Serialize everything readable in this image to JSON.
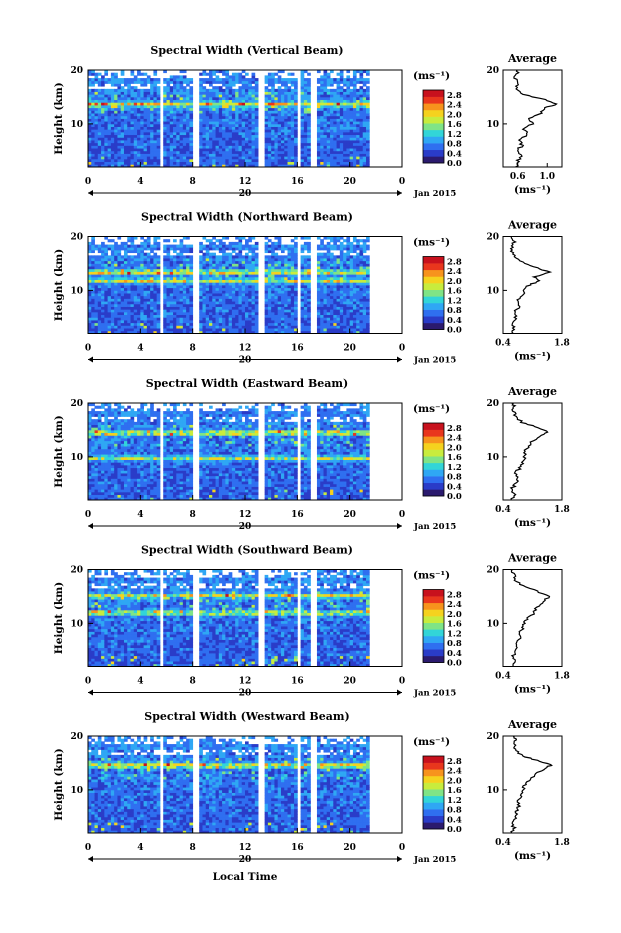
{
  "figure": {
    "date_label": "Jan 2015",
    "day_label": "20",
    "xlabel": "Local Time",
    "ylabel": "Height (km)",
    "unit_label": "(ms⁻¹)",
    "avg_title": "Average",
    "colorbar_ticks": [
      "2.8",
      "2.4",
      "2.0",
      "1.6",
      "1.2",
      "0.8",
      "0.4",
      "0.0"
    ],
    "colormap": [
      "#2b1a6e",
      "#2a3cc8",
      "#2f6ff0",
      "#2fa7f4",
      "#32d5d8",
      "#7fe486",
      "#c8ec3d",
      "#f5d21e",
      "#f7931d",
      "#e9361d",
      "#c8111d"
    ]
  },
  "chart_data": [
    {
      "type": "heatmap",
      "title": "Spectral Width (Vertical Beam)",
      "xlabel": "Local Time",
      "ylabel": "Height (km)",
      "xlim": [
        0,
        24
      ],
      "ylim": [
        2,
        20
      ],
      "xticks": [
        "0",
        "4",
        "8",
        "12",
        "16",
        "20",
        "0"
      ],
      "yticks": [
        "10",
        "20"
      ],
      "colorbar_range": [
        0,
        3.0
      ],
      "gaps": [
        [
          5.5,
          5.8
        ],
        [
          8.1,
          8.4
        ],
        [
          13.1,
          13.4
        ],
        [
          16.0,
          16.3
        ],
        [
          17.1,
          17.4
        ],
        [
          21.6,
          24
        ]
      ],
      "hot_layers": [
        {
          "height": 13.7,
          "value": 2.6
        }
      ],
      "avg": {
        "xlim": [
          0.4,
          1.2
        ],
        "xticks": [
          "0.6",
          "1.0"
        ],
        "xlabel": "(ms⁻¹)",
        "profile": [
          [
            2,
            0.58
          ],
          [
            3,
            0.6
          ],
          [
            4,
            0.64
          ],
          [
            5,
            0.58
          ],
          [
            6,
            0.66
          ],
          [
            7,
            0.62
          ],
          [
            8,
            0.74
          ],
          [
            9,
            0.68
          ],
          [
            10,
            0.8
          ],
          [
            11,
            0.76
          ],
          [
            12,
            0.92
          ],
          [
            13,
            0.98
          ],
          [
            13.7,
            1.12
          ],
          [
            14.5,
            0.96
          ],
          [
            15.5,
            0.68
          ],
          [
            16.5,
            0.58
          ],
          [
            17.5,
            0.6
          ],
          [
            18.5,
            0.56
          ],
          [
            19.5,
            0.6
          ],
          [
            20,
            0.58
          ]
        ]
      }
    },
    {
      "type": "heatmap",
      "title": "Spectral Width (Northward Beam)",
      "xlabel": "Local Time",
      "ylabel": "Height (km)",
      "xlim": [
        0,
        24
      ],
      "ylim": [
        2,
        20
      ],
      "xticks": [
        "0",
        "4",
        "8",
        "12",
        "16",
        "20",
        "0"
      ],
      "yticks": [
        "10",
        "20"
      ],
      "colorbar_range": [
        0,
        3.0
      ],
      "gaps": [
        [
          5.5,
          5.8
        ],
        [
          8.1,
          8.4
        ],
        [
          13.1,
          13.4
        ],
        [
          16.0,
          16.3
        ],
        [
          17.1,
          17.4
        ],
        [
          21.6,
          24
        ]
      ],
      "hot_layers": [
        {
          "height": 13.4,
          "value": 2.5
        },
        {
          "height": 11.8,
          "value": 2.3
        }
      ],
      "avg": {
        "xlim": [
          0.4,
          1.8
        ],
        "xticks": [
          "0.4",
          "1.8"
        ],
        "xlabel": "(ms⁻¹)",
        "profile": [
          [
            2,
            0.6
          ],
          [
            3,
            0.66
          ],
          [
            4,
            0.62
          ],
          [
            5,
            0.7
          ],
          [
            6,
            0.68
          ],
          [
            7,
            0.78
          ],
          [
            8,
            0.74
          ],
          [
            9,
            0.88
          ],
          [
            10,
            0.9
          ],
          [
            11,
            1.02
          ],
          [
            11.8,
            1.28
          ],
          [
            12.5,
            1.12
          ],
          [
            13.4,
            1.52
          ],
          [
            14.2,
            1.2
          ],
          [
            15,
            0.9
          ],
          [
            16,
            0.72
          ],
          [
            17,
            0.62
          ],
          [
            18,
            0.6
          ],
          [
            19,
            0.66
          ],
          [
            20,
            0.6
          ]
        ]
      }
    },
    {
      "type": "heatmap",
      "title": "Spectral Width (Eastward Beam)",
      "xlabel": "Local Time",
      "ylabel": "Height (km)",
      "xlim": [
        0,
        24
      ],
      "ylim": [
        2,
        20
      ],
      "xticks": [
        "0",
        "4",
        "8",
        "12",
        "16",
        "20",
        "0"
      ],
      "yticks": [
        "10",
        "20"
      ],
      "colorbar_range": [
        0,
        3.0
      ],
      "gaps": [
        [
          5.5,
          5.8
        ],
        [
          8.1,
          8.4
        ],
        [
          13.1,
          13.4
        ],
        [
          16.0,
          16.3
        ],
        [
          17.1,
          17.4
        ],
        [
          21.6,
          24
        ]
      ],
      "hot_layers": [
        {
          "height": 14.5,
          "value": 2.5
        },
        {
          "height": 9.8,
          "value": 2.2
        }
      ],
      "avg": {
        "xlim": [
          0.4,
          1.8
        ],
        "xticks": [
          "0.4",
          "1.8"
        ],
        "xlabel": "(ms⁻¹)",
        "profile": [
          [
            2,
            0.62
          ],
          [
            3,
            0.66
          ],
          [
            4,
            0.6
          ],
          [
            5,
            0.7
          ],
          [
            6,
            0.74
          ],
          [
            7,
            0.7
          ],
          [
            8,
            0.8
          ],
          [
            9,
            0.86
          ],
          [
            10,
            0.92
          ],
          [
            11,
            0.9
          ],
          [
            12,
            1.0
          ],
          [
            13,
            1.1
          ],
          [
            14,
            1.3
          ],
          [
            14.8,
            1.46
          ],
          [
            15.6,
            1.18
          ],
          [
            16.4,
            0.86
          ],
          [
            17.5,
            0.7
          ],
          [
            18.5,
            0.64
          ],
          [
            19.5,
            0.68
          ],
          [
            20,
            0.6
          ]
        ]
      }
    },
    {
      "type": "heatmap",
      "title": "Spectral Width (Southward Beam)",
      "xlabel": "Local Time",
      "ylabel": "Height (km)",
      "xlim": [
        0,
        24
      ],
      "ylim": [
        2,
        20
      ],
      "xticks": [
        "0",
        "4",
        "8",
        "12",
        "16",
        "20",
        "0"
      ],
      "yticks": [
        "10",
        "20"
      ],
      "colorbar_range": [
        0,
        3.0
      ],
      "gaps": [
        [
          5.5,
          5.8
        ],
        [
          8.1,
          8.4
        ],
        [
          13.1,
          13.4
        ],
        [
          16.0,
          16.3
        ],
        [
          17.1,
          17.4
        ],
        [
          21.6,
          24
        ]
      ],
      "hot_layers": [
        {
          "height": 15.2,
          "value": 2.3
        },
        {
          "height": 12.0,
          "value": 2.4
        }
      ],
      "avg": {
        "xlim": [
          0.4,
          1.8
        ],
        "xticks": [
          "0.4",
          "1.8"
        ],
        "xlabel": "(ms⁻¹)",
        "profile": [
          [
            2,
            0.6
          ],
          [
            3,
            0.68
          ],
          [
            4,
            0.64
          ],
          [
            5,
            0.72
          ],
          [
            6,
            0.7
          ],
          [
            7,
            0.8
          ],
          [
            8,
            0.76
          ],
          [
            9,
            0.86
          ],
          [
            10,
            0.9
          ],
          [
            11,
            1.0
          ],
          [
            12,
            1.14
          ],
          [
            13,
            1.2
          ],
          [
            14,
            1.36
          ],
          [
            15,
            1.5
          ],
          [
            16,
            1.2
          ],
          [
            17,
            0.88
          ],
          [
            18,
            0.7
          ],
          [
            19,
            0.66
          ],
          [
            20,
            0.62
          ]
        ]
      }
    },
    {
      "type": "heatmap",
      "title": "Spectral Width (Westward Beam)",
      "xlabel": "Local Time",
      "ylabel": "Height (km)",
      "xlim": [
        0,
        24
      ],
      "ylim": [
        2,
        20
      ],
      "xticks": [
        "0",
        "4",
        "8",
        "12",
        "16",
        "20",
        "0"
      ],
      "yticks": [
        "10",
        "20"
      ],
      "colorbar_range": [
        0,
        3.0
      ],
      "gaps": [
        [
          5.5,
          5.8
        ],
        [
          8.1,
          8.4
        ],
        [
          13.1,
          13.4
        ],
        [
          16.0,
          16.3
        ],
        [
          17.1,
          17.4
        ],
        [
          21.6,
          24
        ]
      ],
      "hot_layers": [
        {
          "height": 14.6,
          "value": 2.6
        }
      ],
      "avg": {
        "xlim": [
          0.4,
          1.8
        ],
        "xticks": [
          "0.4",
          "1.8"
        ],
        "xlabel": "(ms⁻¹)",
        "profile": [
          [
            2,
            0.62
          ],
          [
            3,
            0.66
          ],
          [
            4,
            0.6
          ],
          [
            5,
            0.72
          ],
          [
            6,
            0.7
          ],
          [
            7,
            0.78
          ],
          [
            8,
            0.74
          ],
          [
            9,
            0.84
          ],
          [
            10,
            0.88
          ],
          [
            11,
            0.92
          ],
          [
            12,
            1.06
          ],
          [
            13,
            1.18
          ],
          [
            14,
            1.4
          ],
          [
            14.7,
            1.56
          ],
          [
            15.5,
            1.2
          ],
          [
            16.3,
            0.86
          ],
          [
            17.3,
            0.72
          ],
          [
            18.3,
            0.66
          ],
          [
            19.3,
            0.7
          ],
          [
            20,
            0.64
          ]
        ]
      }
    }
  ]
}
